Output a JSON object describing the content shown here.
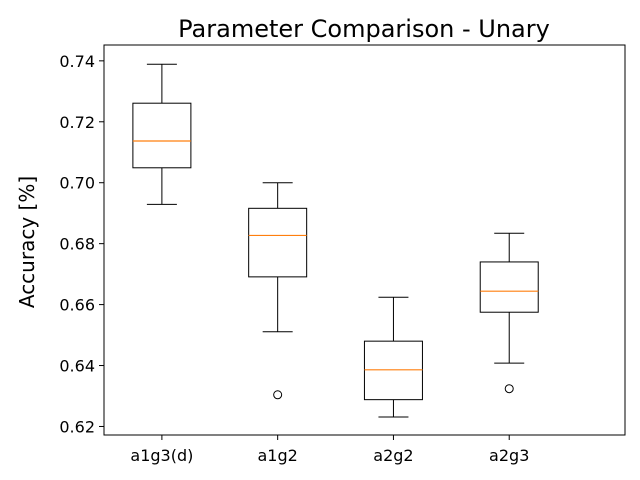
{
  "chart_data": {
    "type": "box",
    "title": "Parameter Comparison - Unary",
    "xlabel": "",
    "ylabel": "Accuracy [%]",
    "ylim": [
      0.6172,
      0.7452
    ],
    "yticks": [
      "0.62",
      "0.64",
      "0.66",
      "0.68",
      "0.70",
      "0.72",
      "0.74"
    ],
    "grid": false,
    "categories": [
      "a1g3(d)",
      "a1g2",
      "a2g2",
      "a2g3"
    ],
    "boxes": [
      {
        "whisker_low": 0.6929,
        "q1": 0.7049,
        "median": 0.7137,
        "q3": 0.7261,
        "whisker_high": 0.7389,
        "outliers": []
      },
      {
        "whisker_low": 0.6511,
        "q1": 0.6691,
        "median": 0.6827,
        "q3": 0.6916,
        "whisker_high": 0.7,
        "outliers": [
          0.6304
        ]
      },
      {
        "whisker_low": 0.6231,
        "q1": 0.6288,
        "median": 0.6386,
        "q3": 0.648,
        "whisker_high": 0.6624,
        "outliers": []
      },
      {
        "whisker_low": 0.6408,
        "q1": 0.6575,
        "median": 0.6644,
        "q3": 0.674,
        "whisker_high": 0.6834,
        "outliers": [
          0.6324
        ]
      }
    ],
    "colors": {
      "box": "#000000",
      "median": "#ff7f0e",
      "background": "#ffffff"
    }
  }
}
